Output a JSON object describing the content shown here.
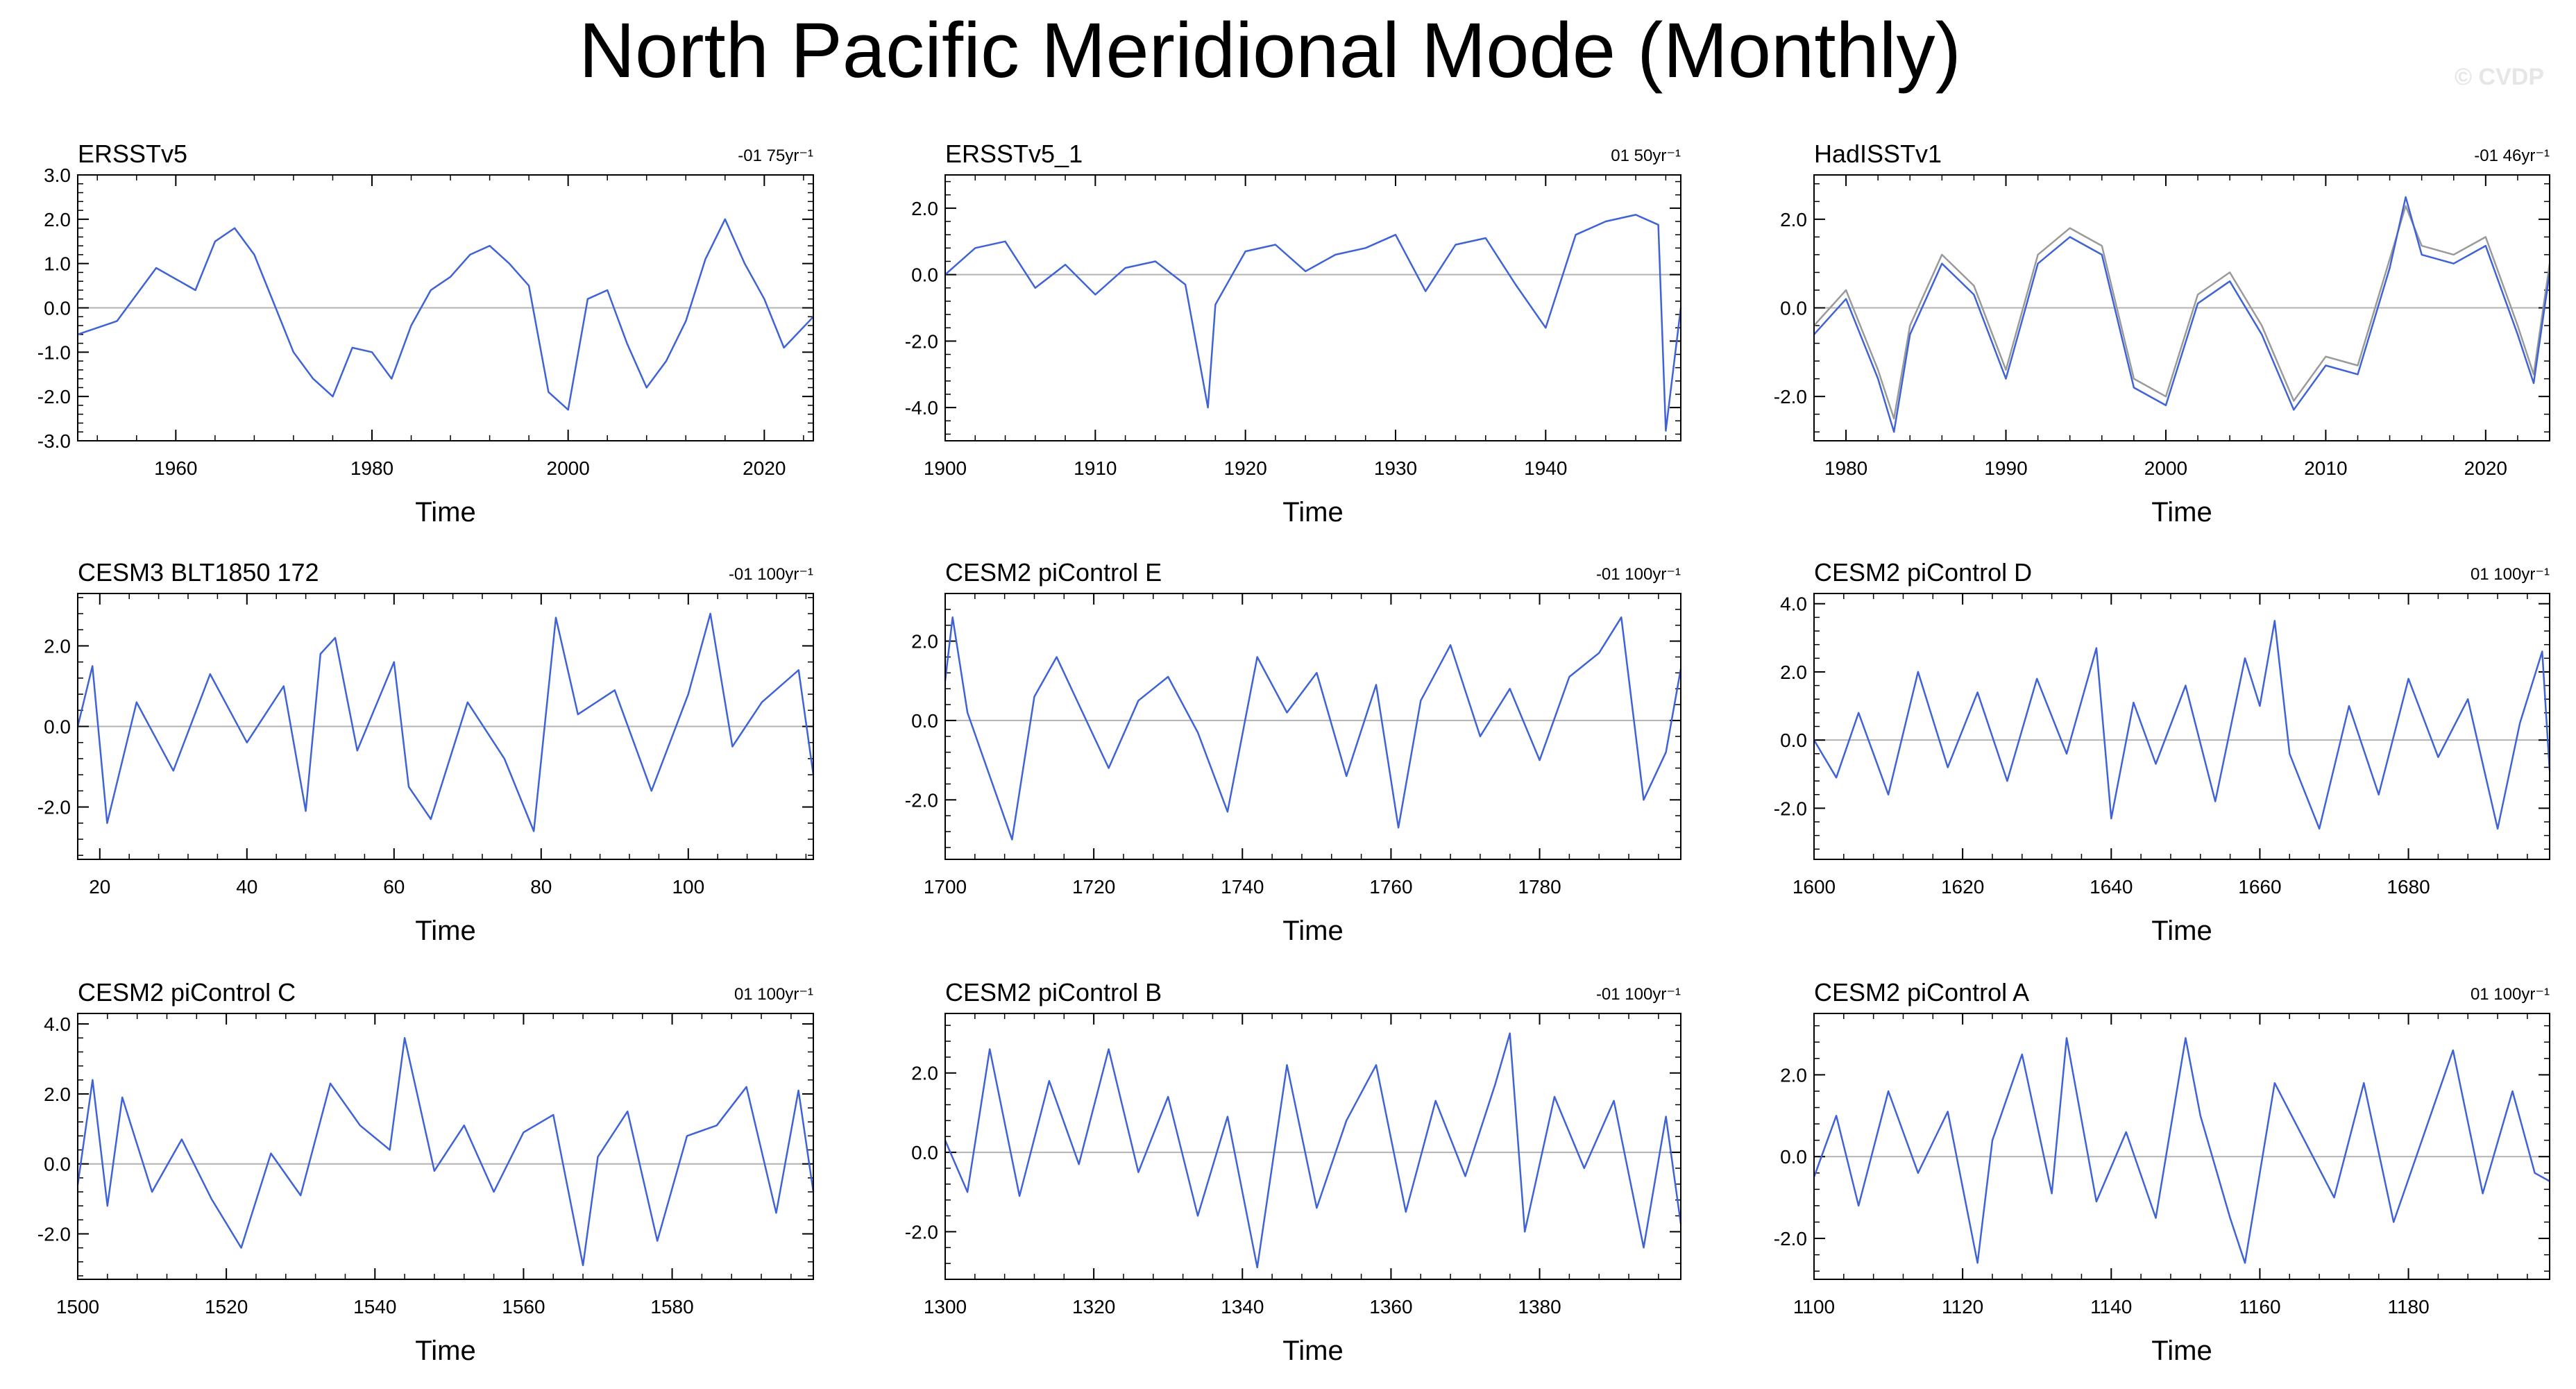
{
  "figure": {
    "title": "North Pacific Meridional Mode (Monthly)",
    "watermark": "© CVDP",
    "colors": {
      "series": "#3f63d6",
      "obs_overlay": "#9a9a9a",
      "zero_line": "#b3b3b3",
      "axis": "#000000"
    }
  },
  "chart_data": [
    {
      "type": "line",
      "title": "ERSSTv5",
      "trend": "-01 75yr⁻¹",
      "xlabel": "Time",
      "xlim": [
        1950,
        2025
      ],
      "ylim": [
        -3.0,
        3.0
      ],
      "yticks": [
        -3.0,
        -2.0,
        -1.0,
        0.0,
        1.0,
        2.0,
        3.0
      ],
      "ytick_labels": [
        "-3.0",
        "-2.0",
        "-1.0",
        "0.0",
        "1.0",
        "2.0",
        "3.0"
      ],
      "xticks": [
        1960,
        1980,
        2000,
        2020
      ],
      "xtick_labels": [
        "1960",
        "1980",
        "2000",
        "2020"
      ],
      "series": [
        {
          "name": "ERSSTv5",
          "x": [
            1950,
            1954,
            1958,
            1962,
            1964,
            1966,
            1968,
            1970,
            1972,
            1974,
            1976,
            1978,
            1980,
            1982,
            1984,
            1986,
            1988,
            1990,
            1992,
            1994,
            1996,
            1998,
            2000,
            2002,
            2004,
            2006,
            2008,
            2010,
            2012,
            2014,
            2016,
            2018,
            2020,
            2022,
            2025
          ],
          "values": [
            -0.6,
            -0.3,
            0.9,
            0.4,
            1.5,
            1.8,
            1.2,
            0.1,
            -1.0,
            -1.6,
            -2.0,
            -0.9,
            -1.0,
            -1.6,
            -0.4,
            0.4,
            0.7,
            1.2,
            1.4,
            1.0,
            0.5,
            -1.9,
            -2.3,
            0.2,
            0.4,
            -0.8,
            -1.8,
            -1.2,
            -0.3,
            1.1,
            2.0,
            1.0,
            0.2,
            -0.9,
            -0.2
          ]
        }
      ]
    },
    {
      "type": "line",
      "title": "ERSSTv5_1",
      "trend": "01 50yr⁻¹",
      "xlabel": "Time",
      "xlim": [
        1900,
        1949
      ],
      "ylim": [
        -5.0,
        3.0
      ],
      "yticks": [
        -4.0,
        -2.0,
        0.0,
        2.0
      ],
      "ytick_labels": [
        "-4.0",
        "-2.0",
        "0.0",
        "2.0"
      ],
      "xticks": [
        1900,
        1910,
        1920,
        1930,
        1940
      ],
      "xtick_labels": [
        "1900",
        "1910",
        "1920",
        "1930",
        "1940"
      ],
      "series": [
        {
          "name": "ERSSTv5_1",
          "x": [
            1900,
            1902,
            1904,
            1906,
            1908,
            1910,
            1912,
            1914,
            1916,
            1917.5,
            1918,
            1920,
            1922,
            1924,
            1926,
            1928,
            1930,
            1932,
            1934,
            1936,
            1938,
            1940,
            1942,
            1944,
            1946,
            1947.5,
            1948,
            1949
          ],
          "values": [
            0.0,
            0.8,
            1.0,
            -0.4,
            0.3,
            -0.6,
            0.2,
            0.4,
            -0.3,
            -4.0,
            -0.9,
            0.7,
            0.9,
            0.1,
            0.6,
            0.8,
            1.2,
            -0.5,
            0.9,
            1.1,
            -0.3,
            -1.6,
            1.2,
            1.6,
            1.8,
            1.5,
            -4.7,
            -1.0
          ]
        }
      ]
    },
    {
      "type": "line",
      "title": "HadISSTv1",
      "trend": "-01 46yr⁻¹",
      "xlabel": "Time",
      "xlim": [
        1978,
        2024
      ],
      "ylim": [
        -3.0,
        3.0
      ],
      "yticks": [
        -2.0,
        0.0,
        2.0
      ],
      "ytick_labels": [
        "-2.0",
        "0.0",
        "2.0"
      ],
      "xticks": [
        1980,
        1990,
        2000,
        2010,
        2020
      ],
      "xtick_labels": [
        "1980",
        "1990",
        "2000",
        "2010",
        "2020"
      ],
      "series": [
        {
          "name": "HadISSTv1",
          "x": [
            1978,
            1980,
            1982,
            1983,
            1984,
            1986,
            1988,
            1990,
            1992,
            1994,
            1996,
            1998,
            2000,
            2002,
            2004,
            2006,
            2008,
            2010,
            2012,
            2014,
            2015,
            2016,
            2018,
            2020,
            2022,
            2023,
            2024
          ],
          "values": [
            -0.6,
            0.2,
            -1.6,
            -2.8,
            -0.6,
            1.0,
            0.3,
            -1.6,
            1.0,
            1.6,
            1.2,
            -1.8,
            -2.2,
            0.1,
            0.6,
            -0.6,
            -2.3,
            -1.3,
            -1.5,
            0.9,
            2.5,
            1.2,
            1.0,
            1.4,
            -0.6,
            -1.7,
            0.8
          ]
        },
        {
          "name": "HadISSTv1 ref",
          "x": [
            1978,
            1980,
            1982,
            1983,
            1984,
            1986,
            1988,
            1990,
            1992,
            1994,
            1996,
            1998,
            2000,
            2002,
            2004,
            2006,
            2008,
            2010,
            2012,
            2014,
            2015,
            2016,
            2018,
            2020,
            2022,
            2023,
            2024
          ],
          "values": [
            -0.4,
            0.4,
            -1.4,
            -2.5,
            -0.4,
            1.2,
            0.5,
            -1.4,
            1.2,
            1.8,
            1.4,
            -1.6,
            -2.0,
            0.3,
            0.8,
            -0.4,
            -2.1,
            -1.1,
            -1.3,
            1.1,
            2.3,
            1.4,
            1.2,
            1.6,
            -0.4,
            -1.5,
            1.0
          ]
        }
      ]
    },
    {
      "type": "line",
      "title": "CESM3 BLT1850 172",
      "trend": "-01 100yr⁻¹",
      "xlabel": "Time",
      "xlim": [
        17,
        117
      ],
      "ylim": [
        -3.3,
        3.3
      ],
      "yticks": [
        -2.0,
        0.0,
        2.0
      ],
      "ytick_labels": [
        "-2.0",
        "0.0",
        "2.0"
      ],
      "xticks": [
        20,
        40,
        60,
        80,
        100
      ],
      "xtick_labels": [
        "20",
        "40",
        "60",
        "80",
        "100"
      ],
      "series": [
        {
          "name": "CESM3 BLT1850 172",
          "x": [
            17,
            19,
            21,
            25,
            30,
            35,
            40,
            45,
            48,
            50,
            52,
            55,
            60,
            62,
            65,
            70,
            75,
            79,
            82,
            85,
            90,
            95,
            100,
            103,
            106,
            110,
            115,
            117
          ],
          "values": [
            0.0,
            1.5,
            -2.4,
            0.6,
            -1.1,
            1.3,
            -0.4,
            1.0,
            -2.1,
            1.8,
            2.2,
            -0.6,
            1.6,
            -1.5,
            -2.3,
            0.6,
            -0.8,
            -2.6,
            2.7,
            0.3,
            0.9,
            -1.6,
            0.8,
            2.8,
            -0.5,
            0.6,
            1.4,
            -1.2
          ]
        }
      ]
    },
    {
      "type": "line",
      "title": "CESM2 piControl E",
      "trend": "-01 100yr⁻¹",
      "xlabel": "Time",
      "xlim": [
        1700,
        1799
      ],
      "ylim": [
        -3.5,
        3.2
      ],
      "yticks": [
        -2.0,
        0.0,
        2.0
      ],
      "ytick_labels": [
        "-2.0",
        "0.0",
        "2.0"
      ],
      "xticks": [
        1700,
        1720,
        1740,
        1760,
        1780
      ],
      "xtick_labels": [
        "1700",
        "1720",
        "1740",
        "1760",
        "1780"
      ],
      "series": [
        {
          "name": "CESM2 piControl E",
          "x": [
            1700,
            1701,
            1703,
            1706,
            1709,
            1712,
            1715,
            1718,
            1722,
            1726,
            1730,
            1734,
            1738,
            1742,
            1746,
            1750,
            1754,
            1758,
            1761,
            1764,
            1768,
            1772,
            1776,
            1780,
            1784,
            1788,
            1791,
            1794,
            1797,
            1799
          ],
          "values": [
            1.0,
            2.6,
            0.2,
            -1.4,
            -3.0,
            0.6,
            1.6,
            0.4,
            -1.2,
            0.5,
            1.1,
            -0.3,
            -2.3,
            1.6,
            0.2,
            1.2,
            -1.4,
            0.9,
            -2.7,
            0.5,
            1.9,
            -0.4,
            0.8,
            -1.0,
            1.1,
            1.7,
            2.6,
            -2.0,
            -0.8,
            1.3
          ]
        }
      ]
    },
    {
      "type": "line",
      "title": "CESM2 piControl D",
      "trend": "01 100yr⁻¹",
      "xlabel": "Time",
      "xlim": [
        1600,
        1699
      ],
      "ylim": [
        -3.5,
        4.3
      ],
      "yticks": [
        -2.0,
        0.0,
        2.0,
        4.0
      ],
      "ytick_labels": [
        "-2.0",
        "0.0",
        "2.0",
        "4.0"
      ],
      "xticks": [
        1600,
        1620,
        1640,
        1660,
        1680
      ],
      "xtick_labels": [
        "1600",
        "1620",
        "1640",
        "1660",
        "1680"
      ],
      "series": [
        {
          "name": "CESM2 piControl D",
          "x": [
            1600,
            1603,
            1606,
            1610,
            1614,
            1618,
            1622,
            1626,
            1630,
            1634,
            1638,
            1640,
            1643,
            1646,
            1650,
            1654,
            1658,
            1660,
            1662,
            1664,
            1668,
            1672,
            1676,
            1680,
            1684,
            1688,
            1692,
            1695,
            1698,
            1699
          ],
          "values": [
            0.0,
            -1.1,
            0.8,
            -1.6,
            2.0,
            -0.8,
            1.4,
            -1.2,
            1.8,
            -0.4,
            2.7,
            -2.3,
            1.1,
            -0.7,
            1.6,
            -1.8,
            2.4,
            1.0,
            3.5,
            -0.4,
            -2.6,
            1.0,
            -1.6,
            1.8,
            -0.5,
            1.2,
            -2.6,
            0.5,
            2.6,
            -0.9
          ]
        }
      ]
    },
    {
      "type": "line",
      "title": "CESM2 piControl C",
      "trend": "01 100yr⁻¹",
      "xlabel": "Time",
      "xlim": [
        1500,
        1599
      ],
      "ylim": [
        -3.3,
        4.3
      ],
      "yticks": [
        -2.0,
        0.0,
        2.0,
        4.0
      ],
      "ytick_labels": [
        "-2.0",
        "0.0",
        "2.0",
        "4.0"
      ],
      "xticks": [
        1500,
        1520,
        1540,
        1560,
        1580
      ],
      "xtick_labels": [
        "1500",
        "1520",
        "1540",
        "1560",
        "1580"
      ],
      "series": [
        {
          "name": "CESM2 piControl C",
          "x": [
            1500,
            1502,
            1504,
            1506,
            1510,
            1514,
            1518,
            1522,
            1526,
            1530,
            1534,
            1538,
            1542,
            1544,
            1548,
            1552,
            1556,
            1560,
            1564,
            1568,
            1570,
            1574,
            1578,
            1582,
            1586,
            1590,
            1594,
            1597,
            1599
          ],
          "values": [
            -0.6,
            2.4,
            -1.2,
            1.9,
            -0.8,
            0.7,
            -1.0,
            -2.4,
            0.3,
            -0.9,
            2.3,
            1.1,
            0.4,
            3.6,
            -0.2,
            1.1,
            -0.8,
            0.9,
            1.4,
            -2.9,
            0.2,
            1.5,
            -2.2,
            0.8,
            1.1,
            2.2,
            -1.4,
            2.1,
            -0.8
          ]
        }
      ]
    },
    {
      "type": "line",
      "title": "CESM2 piControl B",
      "trend": "-01 100yr⁻¹",
      "xlabel": "Time",
      "xlim": [
        1300,
        1399
      ],
      "ylim": [
        -3.2,
        3.5
      ],
      "yticks": [
        -2.0,
        0.0,
        2.0
      ],
      "ytick_labels": [
        "-2.0",
        "0.0",
        "2.0"
      ],
      "xticks": [
        1300,
        1320,
        1340,
        1360,
        1380
      ],
      "xtick_labels": [
        "1300",
        "1320",
        "1340",
        "1360",
        "1380"
      ],
      "series": [
        {
          "name": "CESM2 piControl B",
          "x": [
            1300,
            1303,
            1306,
            1310,
            1314,
            1318,
            1322,
            1326,
            1330,
            1334,
            1338,
            1342,
            1346,
            1350,
            1354,
            1358,
            1362,
            1366,
            1370,
            1374,
            1376,
            1378,
            1382,
            1386,
            1390,
            1394,
            1397,
            1399
          ],
          "values": [
            0.3,
            -1.0,
            2.6,
            -1.1,
            1.8,
            -0.3,
            2.6,
            -0.5,
            1.4,
            -1.6,
            0.9,
            -2.9,
            2.2,
            -1.4,
            0.8,
            2.2,
            -1.5,
            1.3,
            -0.6,
            1.7,
            3.0,
            -2.0,
            1.4,
            -0.4,
            1.3,
            -2.4,
            0.9,
            -1.8
          ]
        }
      ]
    },
    {
      "type": "line",
      "title": "CESM2 piControl A",
      "trend": "01 100yr⁻¹",
      "xlabel": "Time",
      "xlim": [
        1100,
        1199
      ],
      "ylim": [
        -3.0,
        3.5
      ],
      "yticks": [
        -2.0,
        0.0,
        2.0
      ],
      "ytick_labels": [
        "-2.0",
        "0.0",
        "2.0"
      ],
      "xticks": [
        1100,
        1120,
        1140,
        1160,
        1180
      ],
      "xtick_labels": [
        "1100",
        "1120",
        "1140",
        "1160",
        "1180"
      ],
      "series": [
        {
          "name": "CESM2 piControl A",
          "x": [
            1100,
            1103,
            1106,
            1110,
            1114,
            1118,
            1122,
            1124,
            1128,
            1132,
            1134,
            1138,
            1142,
            1146,
            1150,
            1152,
            1156,
            1158,
            1162,
            1166,
            1170,
            1174,
            1178,
            1182,
            1186,
            1190,
            1194,
            1197,
            1199
          ],
          "values": [
            -0.5,
            1.0,
            -1.2,
            1.6,
            -0.4,
            1.1,
            -2.6,
            0.4,
            2.5,
            -0.9,
            2.9,
            -1.1,
            0.6,
            -1.5,
            2.9,
            1.0,
            -1.5,
            -2.6,
            1.8,
            0.4,
            -1.0,
            1.8,
            -1.6,
            0.5,
            2.6,
            -0.9,
            1.6,
            -0.4,
            -0.6
          ]
        }
      ]
    }
  ]
}
